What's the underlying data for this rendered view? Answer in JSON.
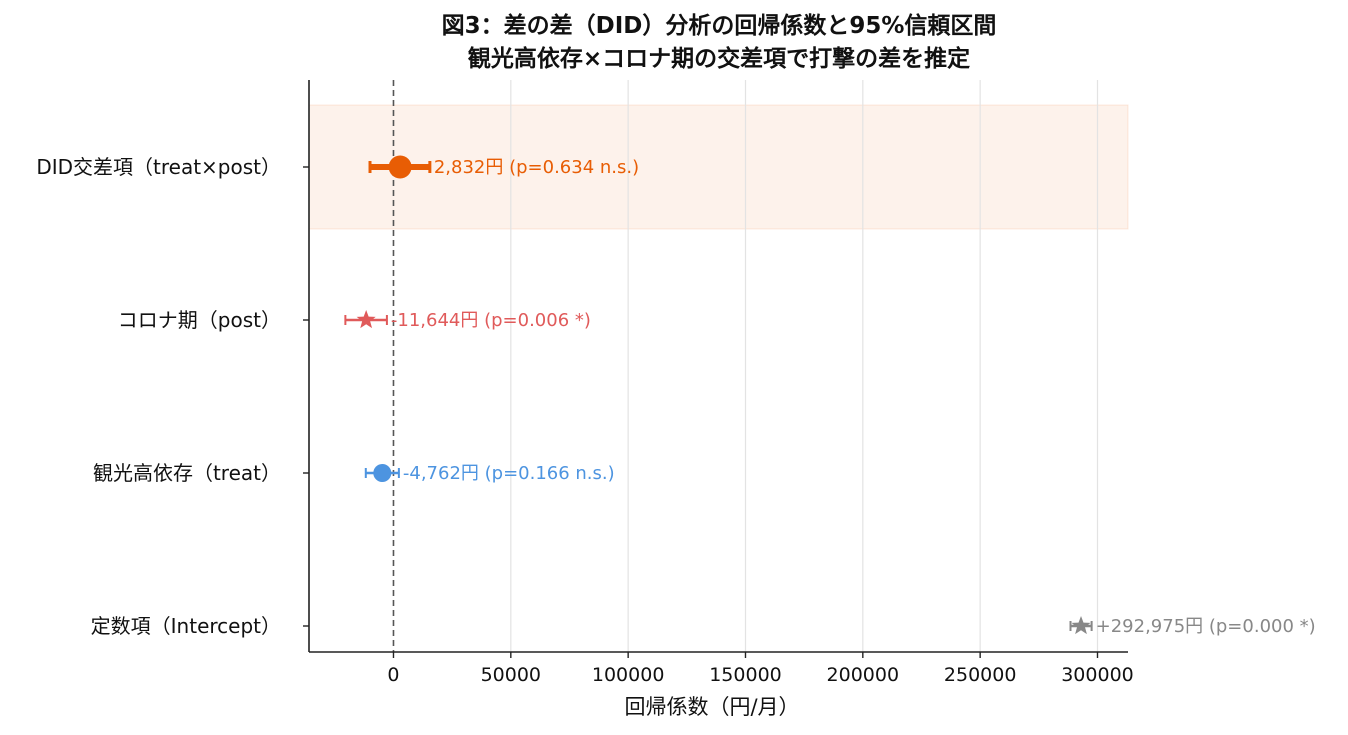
{
  "chart_data": {
    "type": "forest",
    "title": "図3：差の差（DID）分析の回帰係数と95%信頼区間",
    "subtitle": "観光高依存×コロナ期の交差項で打撃の差を推定",
    "xlabel": "回帰係数（円/月）",
    "xlim": [
      -36000,
      313000
    ],
    "xticks": [
      0,
      50000,
      100000,
      150000,
      200000,
      250000,
      300000
    ],
    "xtick_labels": [
      "0",
      "50000",
      "100000",
      "150000",
      "200000",
      "250000",
      "300000"
    ],
    "grid": "vertical",
    "reference_line": 0,
    "highlight_row": 0,
    "highlight_color": "#e85d04",
    "rows": [
      {
        "label": "DID交差項（treat×post）",
        "coef": 2832,
        "ci_low": -10000,
        "ci_high": 15500,
        "marker": "circle",
        "color": "#e85d04",
        "annotation": "2,832円 (p=0.634 n.s.)"
      },
      {
        "label": "コロナ期（post）",
        "coef": -11644,
        "ci_low": -20500,
        "ci_high": -2800,
        "marker": "star",
        "color": "#e05a5a",
        "annotation": "-11,644円 (p=0.006 *)"
      },
      {
        "label": "観光高依存（treat）",
        "coef": -4762,
        "ci_low": -11800,
        "ci_high": 2300,
        "marker": "circle",
        "color": "#4d94e0",
        "annotation": "-4,762円 (p=0.166 n.s.)"
      },
      {
        "label": "定数項（Intercept）",
        "coef": 292975,
        "ci_low": 288500,
        "ci_high": 297500,
        "marker": "star",
        "color": "#888888",
        "annotation": "+292,975円 (p=0.000 *)"
      }
    ]
  }
}
